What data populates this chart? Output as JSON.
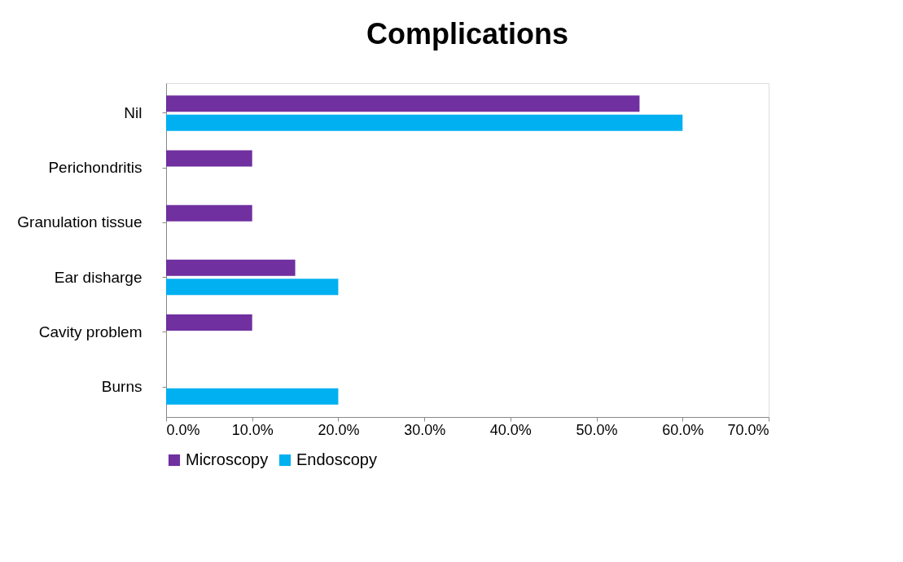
{
  "chart_data": {
    "type": "bar",
    "orientation": "horizontal",
    "title": "Complications",
    "categories": [
      "Nil",
      "Perichondritis",
      "Granulation tissue",
      "Ear disharge",
      "Cavity problem",
      "Burns"
    ],
    "series": [
      {
        "name": "Microscopy",
        "color": "#7030a0",
        "values": [
          55,
          10,
          10,
          15,
          10,
          0
        ]
      },
      {
        "name": "Endoscopy",
        "color": "#00b0f0",
        "values": [
          60,
          0,
          0,
          20,
          0,
          20
        ]
      }
    ],
    "xlim": [
      0,
      70
    ],
    "xticks": [
      {
        "value": 0,
        "label": "0.0%"
      },
      {
        "value": 10,
        "label": "10.0%"
      },
      {
        "value": 20,
        "label": "20.0%"
      },
      {
        "value": 30,
        "label": "30.0%"
      },
      {
        "value": 40,
        "label": "40.0%"
      },
      {
        "value": 50,
        "label": "50.0%"
      },
      {
        "value": 60,
        "label": "60.0%"
      },
      {
        "value": 70,
        "label": "70.0%"
      }
    ],
    "grid": false,
    "legend": "bottom"
  }
}
